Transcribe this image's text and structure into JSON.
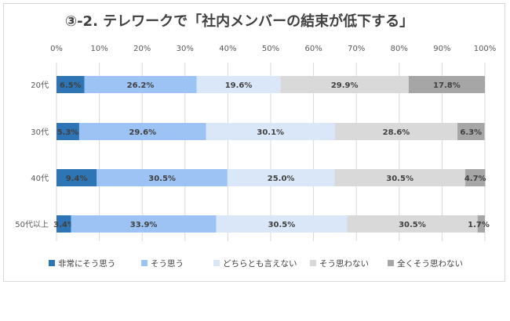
{
  "chart_data": {
    "type": "bar",
    "orientation": "horizontal",
    "stacked": "percent",
    "title": "③-2. テレワークで「社内メンバーの結束が低下する」",
    "xlabel": "",
    "ylabel": "",
    "xlim": [
      0,
      100
    ],
    "x_ticks": [
      "0%",
      "10%",
      "20%",
      "30%",
      "40%",
      "50%",
      "60%",
      "70%",
      "80%",
      "90%",
      "100%"
    ],
    "categories": [
      "20代",
      "30代",
      "40代",
      "50代以上"
    ],
    "series": [
      {
        "name": "非常にそう思う",
        "color": "#2e75b6",
        "values": [
          6.5,
          5.3,
          9.4,
          3.4
        ],
        "labels": [
          "6.5%",
          "5.3%",
          "9.4%",
          "3.4%"
        ]
      },
      {
        "name": "そう思う",
        "color": "#9dc3f5",
        "values": [
          26.2,
          29.6,
          30.5,
          33.9
        ],
        "labels": [
          "26.2%",
          "29.6%",
          "30.5%",
          "33.9%"
        ]
      },
      {
        "name": "どちらとも言えない",
        "color": "#dae7f8",
        "values": [
          19.6,
          30.1,
          25.0,
          30.5
        ],
        "labels": [
          "19.6%",
          "30.1%",
          "25.0%",
          "30.5%"
        ]
      },
      {
        "name": "そう思わない",
        "color": "#d9d9d9",
        "values": [
          29.9,
          28.6,
          30.5,
          30.5
        ],
        "labels": [
          "29.9%",
          "28.6%",
          "30.5%",
          "30.5%"
        ]
      },
      {
        "name": "全くそう思わない",
        "color": "#a6a6a6",
        "values": [
          17.8,
          6.3,
          4.7,
          1.7
        ],
        "labels": [
          "17.8%",
          "6.3%",
          "4.7%",
          "1.7%"
        ]
      }
    ],
    "grid": true,
    "legend": "bottom"
  }
}
